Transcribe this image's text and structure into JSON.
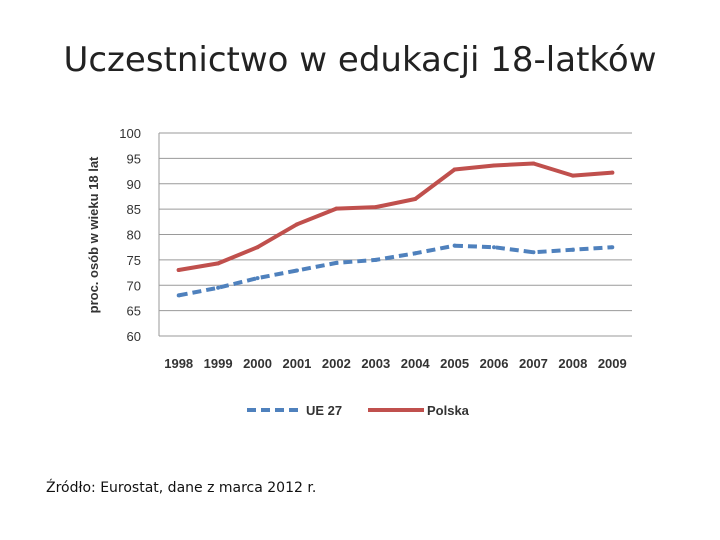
{
  "slide": {
    "title": "Uczestnictwo w edukacji 18-latków",
    "source": "Źródło: Eurostat, dane z marca 2012 r."
  },
  "chart_data": {
    "type": "line",
    "title": "",
    "xlabel": "",
    "ylabel": "proc. osób w wieku 18 lat",
    "x": [
      "1998",
      "1999",
      "2000",
      "2001",
      "2002",
      "2003",
      "2004",
      "2005",
      "2006",
      "2007",
      "2008",
      "2009"
    ],
    "ylim": [
      60,
      100
    ],
    "yticks": [
      60,
      65,
      70,
      75,
      80,
      85,
      90,
      95,
      100
    ],
    "grid": true,
    "legend": "bottom",
    "series": [
      {
        "name": "UE 27",
        "color": "#4f81bd",
        "style": "dashed",
        "values": [
          68.0,
          69.5,
          71.4,
          72.9,
          74.4,
          75.0,
          76.3,
          77.8,
          77.5,
          76.5,
          77.0,
          77.5
        ]
      },
      {
        "name": "Polska",
        "color": "#c0504d",
        "style": "solid",
        "values": [
          73.0,
          74.3,
          77.5,
          82.0,
          85.1,
          85.4,
          87.0,
          92.8,
          93.6,
          94.0,
          91.6,
          92.2
        ]
      }
    ]
  }
}
